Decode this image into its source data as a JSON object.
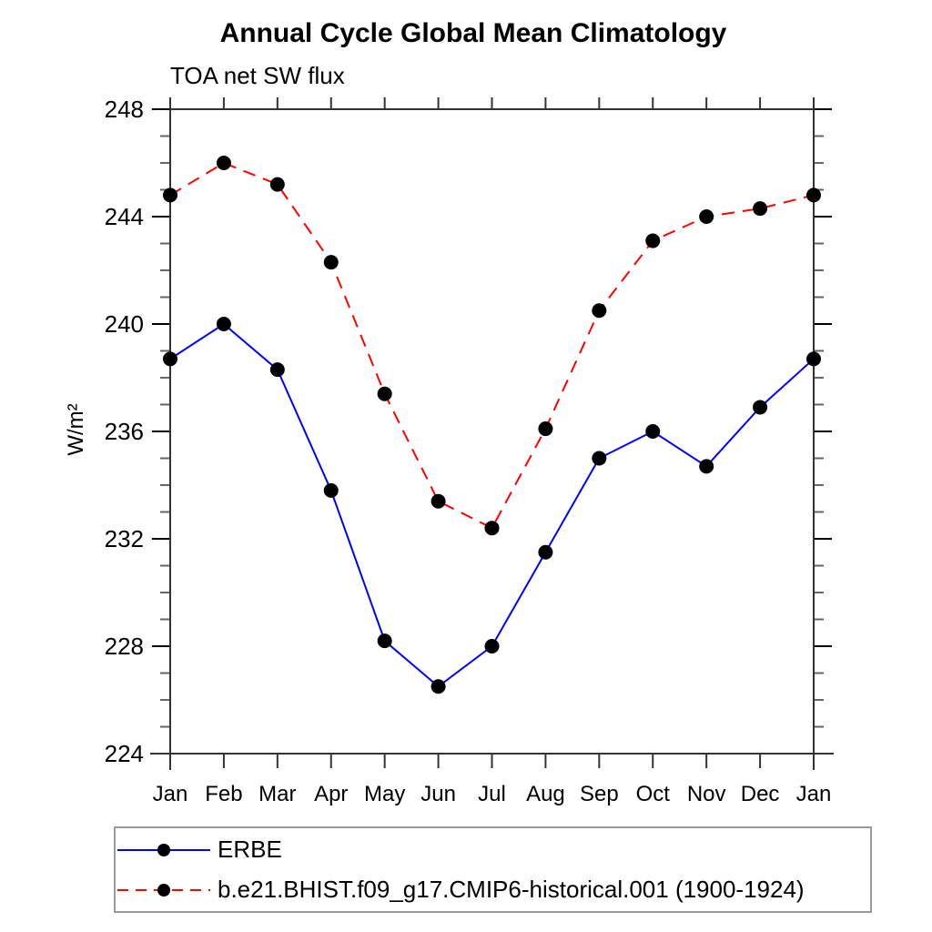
{
  "chart_data": {
    "type": "line",
    "title": "Annual Cycle Global Mean Climatology",
    "subtitle": "TOA net SW flux",
    "ylabel": "W/m²",
    "x_categories": [
      "Jan",
      "Feb",
      "Mar",
      "Apr",
      "May",
      "Jun",
      "Jul",
      "Aug",
      "Sep",
      "Oct",
      "Nov",
      "Dec",
      "Jan"
    ],
    "ylim": [
      224,
      248
    ],
    "ytick_labels": [
      224,
      228,
      232,
      236,
      240,
      244,
      248
    ],
    "ytick_interval_major": 4,
    "ytick_interval_minor": 1,
    "grid": false,
    "legend_position": "bottom-left",
    "series": [
      {
        "name": "ERBE",
        "color": "#0000ff",
        "line_style": "solid",
        "marker": "filled-circle",
        "marker_color": "#000000",
        "values": [
          238.7,
          240.0,
          238.3,
          233.8,
          228.2,
          226.5,
          228.0,
          231.5,
          235.0,
          236.0,
          234.7,
          236.9,
          238.7
        ]
      },
      {
        "name": "b.e21.BHIST.f09_g17.CMIP6-historical.001 (1900-1924)",
        "color": "#ff0000",
        "line_style": "dashed",
        "marker": "filled-circle",
        "marker_color": "#000000",
        "values": [
          244.8,
          246.0,
          245.2,
          242.3,
          237.4,
          233.4,
          232.4,
          236.1,
          240.5,
          243.1,
          244.0,
          244.3,
          244.8
        ]
      }
    ]
  }
}
